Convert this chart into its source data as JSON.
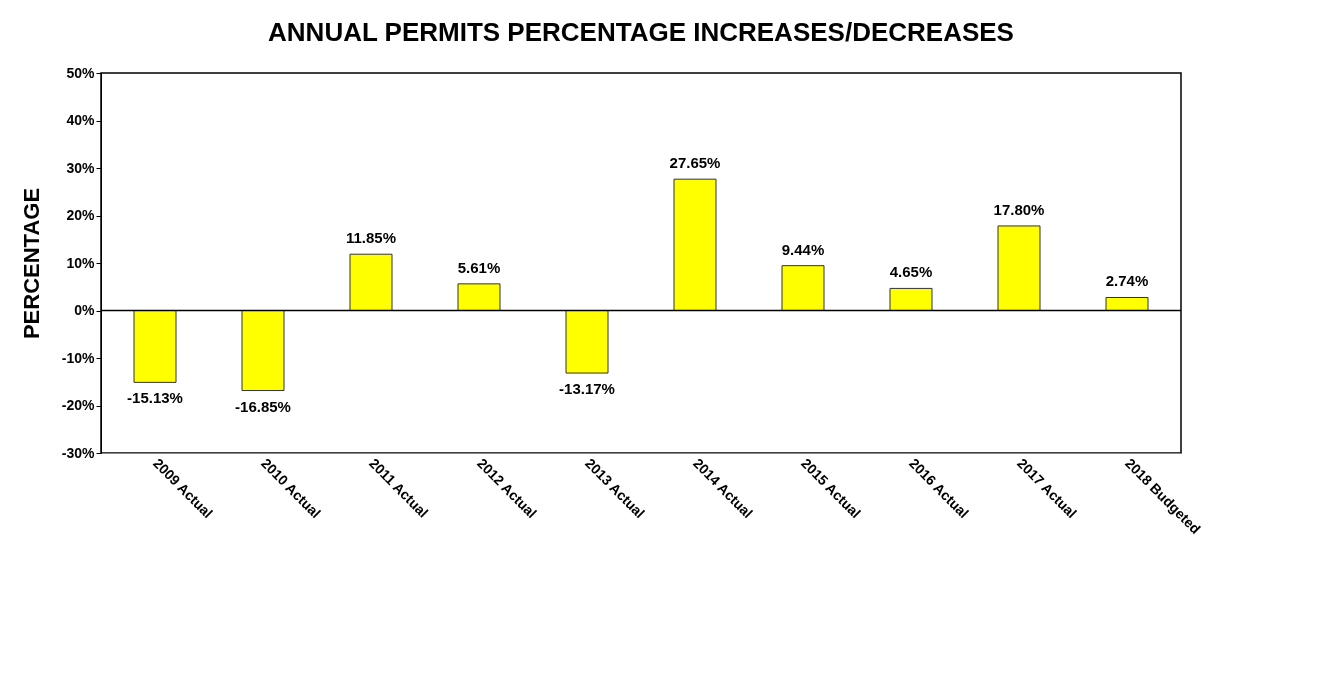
{
  "chart_data": {
    "type": "bar",
    "title": "ANNUAL PERMITS PERCENTAGE INCREASES/DECREASES",
    "ylabel": "PERCENTAGE",
    "categories": [
      "2009 Actual",
      "2010 Actual",
      "2011 Actual",
      "2012 Actual",
      "2013 Actual",
      "2014 Actual",
      "2015 Actual",
      "2016 Actual",
      "2017 Actual",
      "2018 Budgeted"
    ],
    "values": [
      -15.13,
      -16.85,
      11.85,
      5.61,
      -13.17,
      27.65,
      9.44,
      4.65,
      17.8,
      2.74
    ],
    "value_labels": [
      "-15.13%",
      "-16.85%",
      "11.85%",
      "5.61%",
      "-13.17%",
      "27.65%",
      "9.44%",
      "4.65%",
      "17.80%",
      "2.74%"
    ],
    "color": "#ffff00",
    "ylim": [
      -30,
      50
    ],
    "yticks": [
      {
        "value": -30,
        "label": "-30%"
      },
      {
        "value": -20,
        "label": "-20%"
      },
      {
        "value": -10,
        "label": "-10%"
      },
      {
        "value": 0,
        "label": "0%"
      },
      {
        "value": 10,
        "label": "10%"
      },
      {
        "value": 20,
        "label": "20%"
      },
      {
        "value": 30,
        "label": "30%"
      },
      {
        "value": 40,
        "label": "40%"
      },
      {
        "value": 50,
        "label": "50%"
      }
    ],
    "ref_lines": [
      {
        "axis": "y",
        "value": 0,
        "label": null
      }
    ],
    "grid": false
  }
}
